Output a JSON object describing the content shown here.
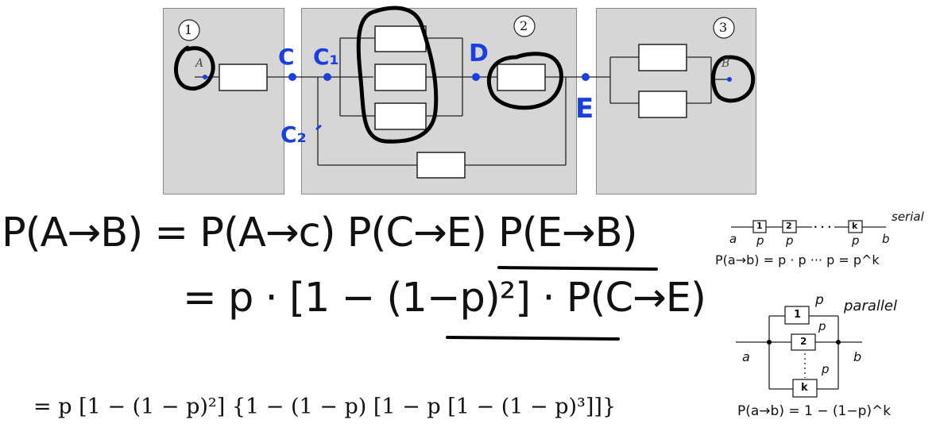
{
  "regions": [
    {
      "number": "1"
    },
    {
      "number": "2"
    },
    {
      "number": "3"
    }
  ],
  "nodes": {
    "A": "A",
    "B": "B",
    "C": "C",
    "C1": "C₁",
    "C2": "C₂",
    "D": "D",
    "E": "E"
  },
  "equations": {
    "line1": "P(A→B) = P(A→c) P(C→E) P(E→B)",
    "line2": "= p · [1 − (1−p)²] · P(C→E)",
    "line3": "= p [1 − (1 − p)²] {1 − (1 − p) [1 − p [1 − (1 − p)³]]}"
  },
  "serial_note": {
    "title": "serial",
    "box1": "1",
    "box2": "2",
    "boxk": "k",
    "dots": "· · ·",
    "a": "a",
    "b": "b",
    "p": "p",
    "formula": "P(a→b) = p · p ··· p = p^k"
  },
  "parallel_note": {
    "title": "parallel",
    "box1": "1",
    "box2": "2",
    "boxk": "k",
    "a": "a",
    "b": "b",
    "p": "p",
    "formula": "P(a→b) = 1 − (1−p)^k"
  }
}
